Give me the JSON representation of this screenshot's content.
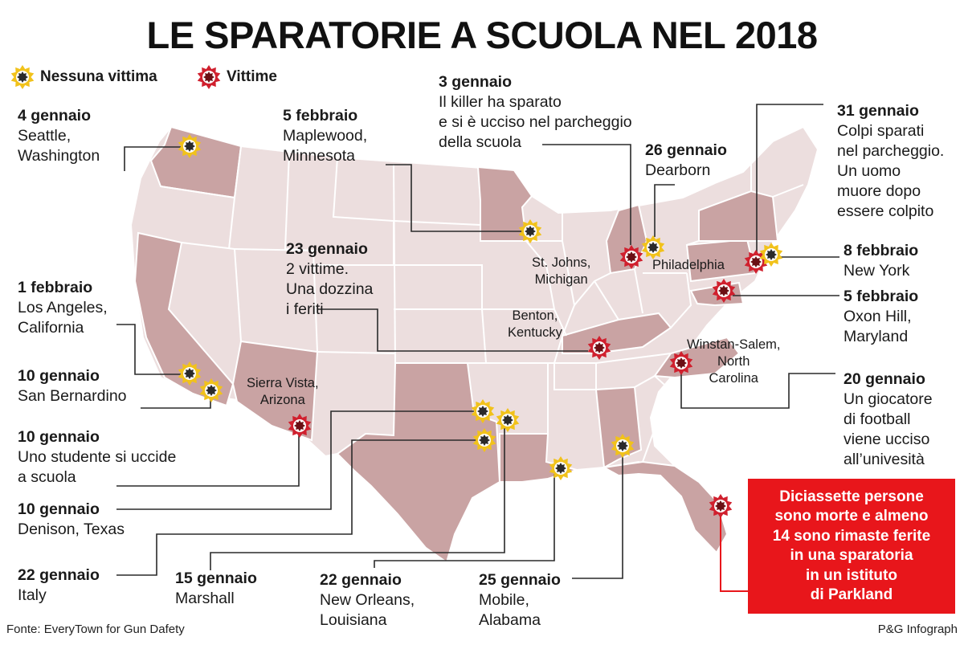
{
  "title": "LE SPARATORIE A SCUOLA NEL 2018",
  "legend": {
    "no_victims": "Nessuna vittima",
    "victims": "Vittime",
    "colors": {
      "no_victims": "#f1c21b",
      "victims": "#d0202e",
      "center": "#2a2a2a"
    }
  },
  "map_colors": {
    "land": "#ecdede",
    "highlight": "#c9a3a3",
    "borders": "#ffffff"
  },
  "events": [
    {
      "id": "seattle",
      "date": "4 gennaio",
      "text": [
        "Seattle,",
        "Washington"
      ],
      "type": "none"
    },
    {
      "id": "maplewood",
      "date": "5 febbraio",
      "text": [
        "Maplewood,",
        "Minnesota"
      ],
      "type": "none"
    },
    {
      "id": "stjohns",
      "date": "3 gennaio",
      "text": [
        "Il killer ha sparato",
        "e si è ucciso nel parcheggio",
        "della scuola"
      ],
      "type": "victims"
    },
    {
      "id": "dearborn",
      "date": "26 gennaio",
      "text": [
        "Dearborn"
      ],
      "type": "none"
    },
    {
      "id": "philadelphia",
      "date": "31 gennaio",
      "text": [
        "Colpi sparati",
        "nel parcheggio.",
        "Un uomo",
        "muore dopo",
        "essere colpito"
      ],
      "type": "victims"
    },
    {
      "id": "newyork",
      "date": "8 febbraio",
      "text": [
        "New York"
      ],
      "type": "none"
    },
    {
      "id": "oxonhill",
      "date": "5 febbraio",
      "text": [
        "Oxon Hill,",
        "Maryland"
      ],
      "type": "victims"
    },
    {
      "id": "benton",
      "date": "23 gennaio",
      "text": [
        "2 vittime.",
        "Una dozzina",
        "i feriti"
      ],
      "type": "victims"
    },
    {
      "id": "losangeles",
      "date": "1 febbraio",
      "text": [
        "Los Angeles,",
        "California"
      ],
      "type": "none"
    },
    {
      "id": "sanbernardino",
      "date": "10 gennaio",
      "text": [
        "San Bernardino"
      ],
      "type": "none"
    },
    {
      "id": "sierravista",
      "date": "10 gennaio",
      "text": [
        "Uno studente si uccide",
        "a scuola"
      ],
      "type": "victims"
    },
    {
      "id": "denison",
      "date": "10 gennaio",
      "text": [
        "Denison, Texas"
      ],
      "type": "none"
    },
    {
      "id": "italy",
      "date": "22 gennaio",
      "text": [
        "Italy"
      ],
      "type": "none"
    },
    {
      "id": "marshall",
      "date": "15 gennaio",
      "text": [
        "Marshall"
      ],
      "type": "none"
    },
    {
      "id": "neworleans",
      "date": "22 gennaio",
      "text": [
        "New Orleans,",
        "Louisiana"
      ],
      "type": "none"
    },
    {
      "id": "mobile",
      "date": "25 gennaio",
      "text": [
        "Mobile,",
        "Alabama"
      ],
      "type": "none"
    },
    {
      "id": "winston",
      "date": "20 gennaio",
      "text": [
        "Un giocatore",
        "di football",
        "viene ucciso",
        "all’univesità"
      ],
      "type": "victims"
    },
    {
      "id": "parkland",
      "date": "",
      "text": [],
      "type": "victims"
    }
  ],
  "map_labels": {
    "stjohns": "St. Johns,\nMichigan",
    "benton": "Benton,\nKentucky",
    "philadelphia": "Philadelphia",
    "winston": "Winstan-Salem,\nNorth\nCarolina",
    "sierravista": "Sierra Vista,\nArizona"
  },
  "parkland_box": [
    "Diciassette persone",
    "sono morte e almeno",
    "14 sono rimaste ferite",
    "in una sparatoria",
    "in un istituto",
    "di Parkland"
  ],
  "footer": {
    "source": "Fonte: EveryTown for Gun Dafety",
    "credit": "P&G Infograph"
  }
}
